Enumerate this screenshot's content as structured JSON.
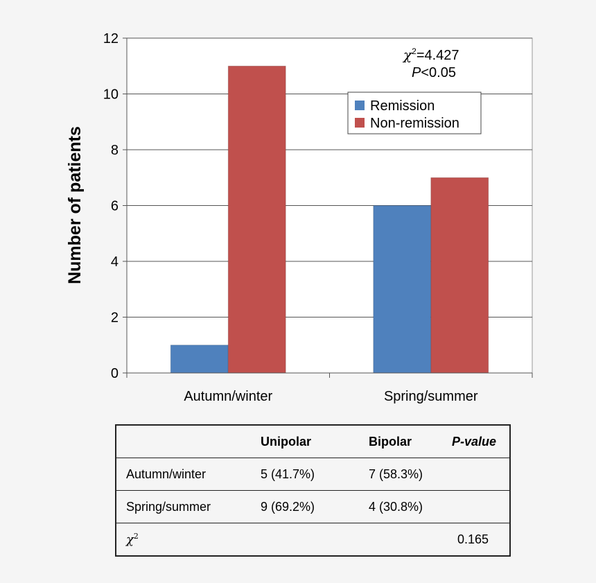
{
  "chart_data": {
    "type": "bar",
    "categories": [
      "Autumn/winter",
      "Spring/summer"
    ],
    "series": [
      {
        "name": "Remission",
        "values": [
          1,
          6
        ],
        "color": "#4f81bd"
      },
      {
        "name": "Non-remission",
        "values": [
          11,
          7
        ],
        "color": "#c0504d"
      }
    ],
    "ylabel": "Number of patients",
    "ylim": [
      0,
      12
    ],
    "yticks": [
      0,
      2,
      4,
      6,
      8,
      10,
      12
    ],
    "grid": true,
    "legend_placement": "top-right",
    "annotation": {
      "chi_symbol": "χ",
      "chi_exponent": "2",
      "chi_value": "=4.427",
      "p_symbol": "P",
      "p_value": "<0.05"
    }
  },
  "table": {
    "headers": [
      "",
      "Unipolar",
      "Bipolar",
      "P-value"
    ],
    "rows": [
      {
        "label": "Autumn/winter",
        "unipolar": "5 (41.7%)",
        "bipolar": "7 (58.3%)",
        "pvalue": ""
      },
      {
        "label": "Spring/summer",
        "unipolar": "9 (69.2%)",
        "bipolar": "4 (30.8%)",
        "pvalue": ""
      }
    ],
    "chi_row": {
      "symbol": "χ",
      "exponent": "2",
      "unipolar": "",
      "bipolar": "",
      "pvalue": "0.165"
    }
  }
}
